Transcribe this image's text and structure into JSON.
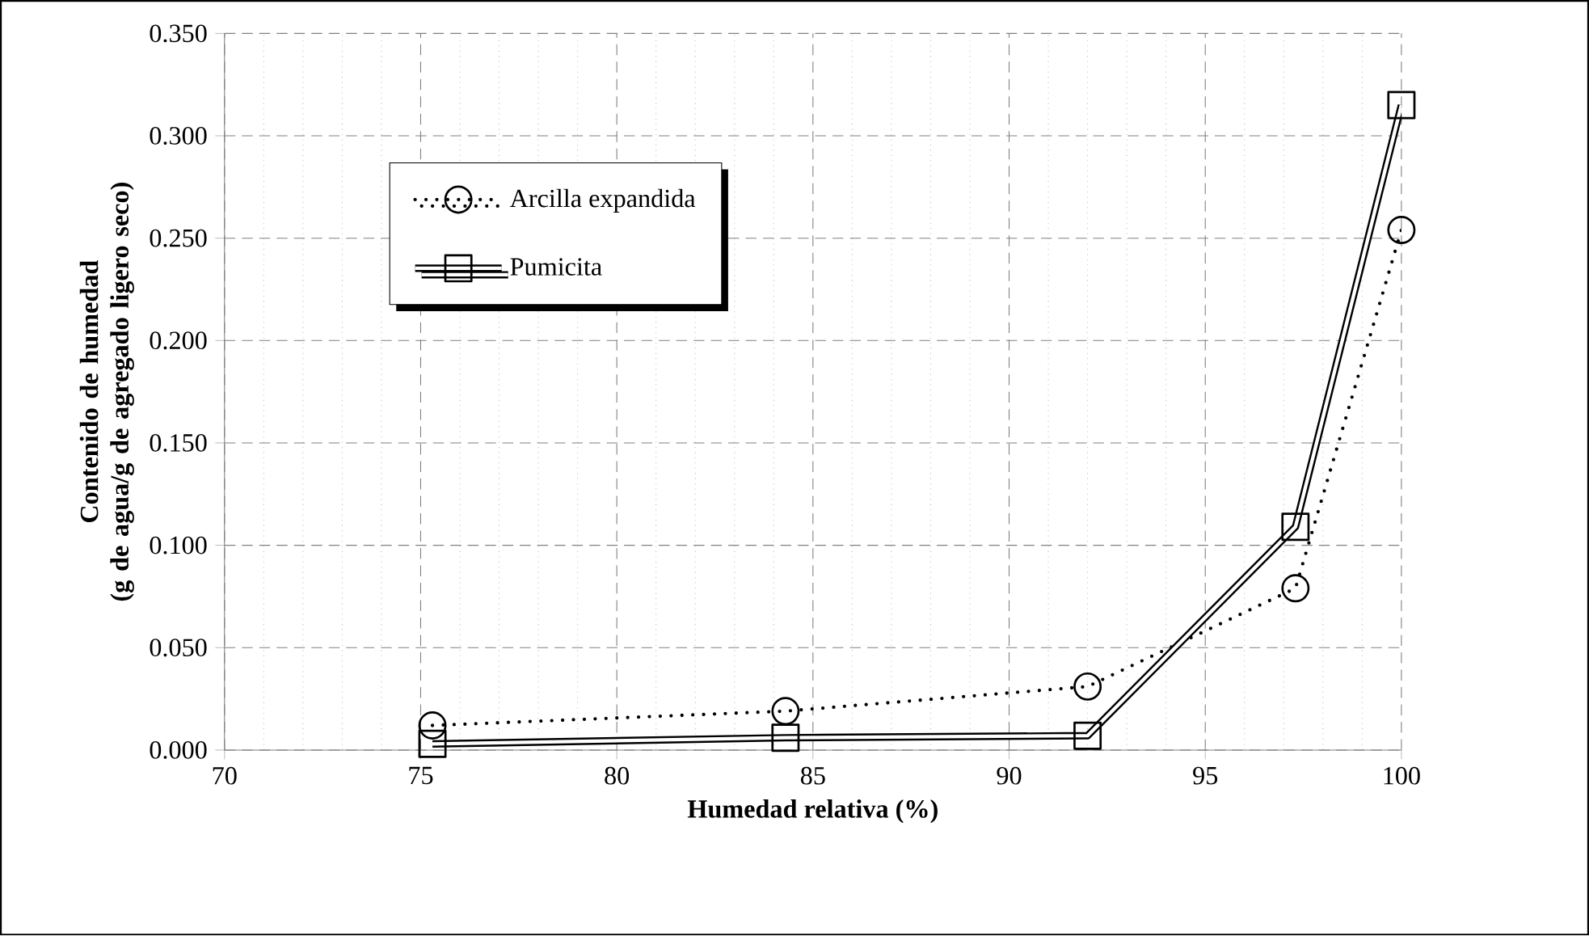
{
  "chart_data": {
    "type": "line",
    "xlabel": "Humedad relativa (%)",
    "ylabel": "Contenido de humedad\n(g de agua/g de agregado ligero seco)",
    "series": [
      {
        "name": "Arcilla expandida",
        "color": "#000000",
        "line_style": "dotted",
        "marker": "circle",
        "x": [
          75.3,
          84.3,
          92.0,
          97.3,
          100.0
        ],
        "values": [
          0.012,
          0.019,
          0.031,
          0.079,
          0.254
        ]
      },
      {
        "name": "Pumicita",
        "color": "#000000",
        "line_style": "solid",
        "marker": "square",
        "x": [
          75.3,
          84.3,
          92.0,
          97.3,
          100.0
        ],
        "values": [
          0.003,
          0.006,
          0.007,
          0.109,
          0.315
        ]
      }
    ],
    "xlim": [
      70,
      100
    ],
    "ylim": [
      0,
      0.35
    ],
    "xticks": [
      70,
      75,
      80,
      85,
      90,
      95,
      100
    ],
    "yticks": [
      {
        "value": 0,
        "label": "0.000"
      },
      {
        "value": 0.05,
        "label": "0.050"
      },
      {
        "value": 0.1,
        "label": "0.100"
      },
      {
        "value": 0.15,
        "label": "0.150"
      },
      {
        "value": 0.2,
        "label": "0.200"
      },
      {
        "value": 0.25,
        "label": "0.250"
      },
      {
        "value": 0.3,
        "label": "0.300"
      },
      {
        "value": 0.35,
        "label": "0.350"
      }
    ],
    "grid": true,
    "legend": "top left"
  }
}
